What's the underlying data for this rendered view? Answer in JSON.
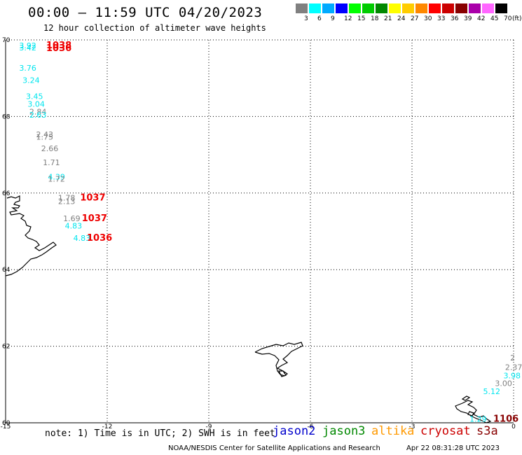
{
  "title": "00:00 – 11:59 UTC 04/20/2023",
  "subtitle": "12 hour collection of altimeter wave heights",
  "legend": {
    "unit": "(ft)",
    "bins": [
      {
        "label": "3",
        "color": "#808080"
      },
      {
        "label": "6",
        "color": "#00ffff"
      },
      {
        "label": "9",
        "color": "#00aaff"
      },
      {
        "label": "12",
        "color": "#0000ff"
      },
      {
        "label": "15",
        "color": "#00ff00"
      },
      {
        "label": "18",
        "color": "#00cc00"
      },
      {
        "label": "21",
        "color": "#008800"
      },
      {
        "label": "24",
        "color": "#ffff00"
      },
      {
        "label": "27",
        "color": "#ffcc00"
      },
      {
        "label": "30",
        "color": "#ff8800"
      },
      {
        "label": "33",
        "color": "#ff0000"
      },
      {
        "label": "36",
        "color": "#cc0000"
      },
      {
        "label": "39",
        "color": "#880000"
      },
      {
        "label": "42",
        "color": "#aa00aa"
      },
      {
        "label": "45",
        "color": "#ff66ff"
      },
      {
        "label": "70",
        "color": "#000000"
      }
    ]
  },
  "axes": {
    "lon_ticks": [
      "-15",
      "-12",
      "-9",
      "-6",
      "-3",
      "0"
    ],
    "lat_ticks": [
      "70",
      "68",
      "66",
      "64",
      "62",
      "60"
    ]
  },
  "observations": [
    {
      "text": "3.92",
      "lon": -14.6,
      "lat": 69.85,
      "color": "#00e5ee"
    },
    {
      "text": "3.42",
      "lon": -14.6,
      "lat": 69.8,
      "color": "#00e5ee"
    },
    {
      "text": "1038",
      "lon": -13.8,
      "lat": 69.85,
      "color": "#ee0000"
    },
    {
      "text": "1036",
      "lon": -13.8,
      "lat": 69.78,
      "color": "#ee0000"
    },
    {
      "text": "3.76",
      "lon": -14.6,
      "lat": 69.27,
      "color": "#00e5ee"
    },
    {
      "text": "3.24",
      "lon": -14.5,
      "lat": 68.95,
      "color": "#00e5ee"
    },
    {
      "text": "3.45",
      "lon": -14.4,
      "lat": 68.53,
      "color": "#00e5ee"
    },
    {
      "text": "3.04",
      "lon": -14.35,
      "lat": 68.33,
      "color": "#00e5ee"
    },
    {
      "text": "2.84",
      "lon": -14.3,
      "lat": 68.13,
      "color": "#808080"
    },
    {
      "text": "2.63",
      "lon": -14.3,
      "lat": 68.04,
      "color": "#00e5ee"
    },
    {
      "text": "2.43",
      "lon": -14.1,
      "lat": 67.53,
      "color": "#808080"
    },
    {
      "text": "1.75",
      "lon": -14.1,
      "lat": 67.47,
      "color": "#808080"
    },
    {
      "text": "2.66",
      "lon": -13.95,
      "lat": 67.17,
      "color": "#808080"
    },
    {
      "text": "1.71",
      "lon": -13.9,
      "lat": 66.8,
      "color": "#808080"
    },
    {
      "text": "4.39",
      "lon": -13.75,
      "lat": 66.43,
      "color": "#00e5ee"
    },
    {
      "text": "1.72",
      "lon": -13.75,
      "lat": 66.37,
      "color": "#808080"
    },
    {
      "text": "1.78",
      "lon": -13.45,
      "lat": 65.88,
      "color": "#808080"
    },
    {
      "text": "2.13",
      "lon": -13.45,
      "lat": 65.79,
      "color": "#808080"
    },
    {
      "text": "1037",
      "lon": -12.8,
      "lat": 65.88,
      "color": "#ee0000"
    },
    {
      "text": "1.69",
      "lon": -13.3,
      "lat": 65.34,
      "color": "#808080"
    },
    {
      "text": "4.83",
      "lon": -13.25,
      "lat": 65.15,
      "color": "#00e5ee"
    },
    {
      "text": "1037",
      "lon": -12.75,
      "lat": 65.34,
      "color": "#ee0000"
    },
    {
      "text": "4.83",
      "lon": -13.0,
      "lat": 64.83,
      "color": "#00e5ee"
    },
    {
      "text": "1036",
      "lon": -12.6,
      "lat": 64.83,
      "color": "#ee0000"
    },
    {
      "text": "2",
      "lon": -0.1,
      "lat": 61.7,
      "color": "#808080"
    },
    {
      "text": "2.37",
      "lon": -0.25,
      "lat": 61.45,
      "color": "#808080"
    },
    {
      "text": "3.98",
      "lon": -0.3,
      "lat": 61.23,
      "color": "#00e5ee"
    },
    {
      "text": "3.00",
      "lon": -0.55,
      "lat": 61.03,
      "color": "#808080"
    },
    {
      "text": "5.12",
      "lon": -0.9,
      "lat": 60.82,
      "color": "#00e5ee"
    },
    {
      "text": "1.29",
      "lon": -1.3,
      "lat": 60.1,
      "color": "#00e5ee"
    },
    {
      "text": "1106",
      "lon": -0.6,
      "lat": 60.1,
      "color": "#880000"
    }
  ],
  "note": "note: 1) Time is in UTC; 2) SWH is in feet",
  "satellites": [
    {
      "name": "jason2",
      "color": "#0000cc"
    },
    {
      "name": "jason3",
      "color": "#008800"
    },
    {
      "name": "altika",
      "color": "#ff9900"
    },
    {
      "name": "cryosat",
      "color": "#cc0000"
    },
    {
      "name": "s3a",
      "color": "#880000"
    }
  ],
  "footer": "NOAA/NESDIS Center for Satellite Applications and Research",
  "footer_time": "Apr 22 08:31:28 UTC 2023"
}
